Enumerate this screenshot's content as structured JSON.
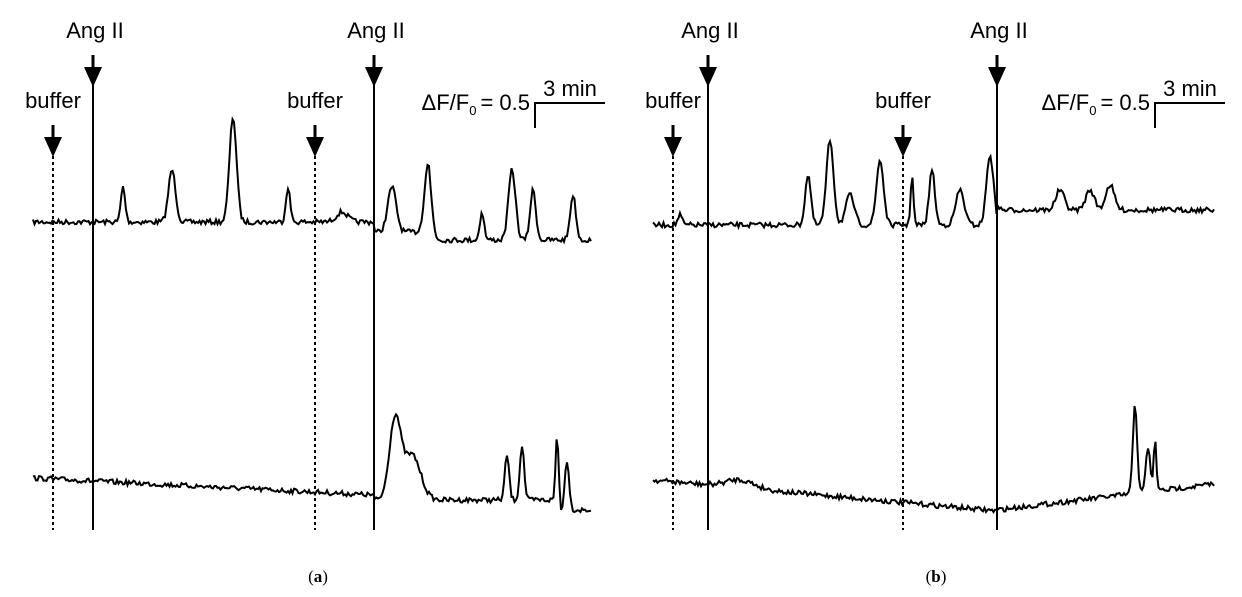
{
  "panels": [
    {
      "stimuli": [
        "buffer",
        "Ang II",
        "buffer",
        "Ang II"
      ],
      "scale_bar": {
        "time": "3 min",
        "amplitude": {
          "label": "ΔF/F",
          "subscript": "0",
          "value": "= 0.5"
        }
      },
      "caption": [
        "(",
        "a",
        ")"
      ]
    },
    {
      "stimuli": [
        "buffer",
        "Ang II",
        "buffer",
        "Ang II"
      ],
      "scale_bar": {
        "time": "3 min",
        "amplitude": {
          "label": "ΔF/F",
          "subscript": "0",
          "value": "= 0.5"
        }
      },
      "caption": [
        "(",
        "b",
        ")"
      ]
    }
  ]
}
